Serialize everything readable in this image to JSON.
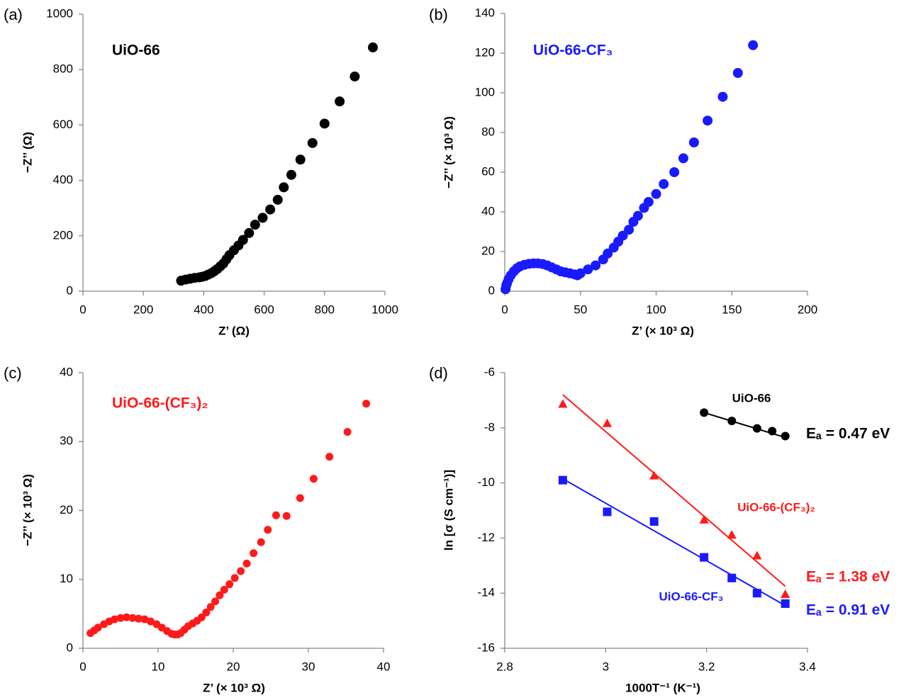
{
  "chart_data": [
    {
      "type": "scatter",
      "panel": "(a)",
      "title": "UiO-66",
      "title_color": "#000000",
      "xlabel": "Z’ (Ω)",
      "ylabel": "−Z’’ (Ω)",
      "xlim": [
        0,
        1000
      ],
      "xticks": [
        0,
        200,
        400,
        600,
        800,
        1000
      ],
      "ylim": [
        0,
        1000
      ],
      "yticks": [
        0,
        200,
        400,
        600,
        800,
        1000
      ],
      "series": [
        {
          "name": "UiO-66",
          "color": "#000000",
          "marker": "circle",
          "x": [
            325,
            340,
            355,
            370,
            385,
            395,
            405,
            415,
            425,
            435,
            445,
            455,
            465,
            475,
            485,
            500,
            515,
            530,
            550,
            570,
            595,
            620,
            645,
            665,
            690,
            720,
            760,
            800,
            850,
            900,
            960
          ],
          "values": [
            38,
            42,
            45,
            48,
            50,
            52,
            55,
            60,
            65,
            72,
            80,
            90,
            100,
            115,
            130,
            148,
            165,
            185,
            210,
            240,
            265,
            295,
            330,
            375,
            420,
            475,
            535,
            605,
            685,
            775,
            880
          ]
        }
      ]
    },
    {
      "type": "scatter",
      "panel": "(b)",
      "title": "UiO-66-CF₃",
      "title_color": "#1a1aff",
      "xlabel": "Z’ (× 10³ Ω)",
      "ylabel": "−Z’’ (× 10³ Ω)",
      "xlim": [
        0,
        200
      ],
      "xticks": [
        0,
        50,
        100,
        150,
        200
      ],
      "ylim": [
        0,
        140
      ],
      "yticks": [
        0,
        20,
        40,
        60,
        80,
        100,
        120,
        140
      ],
      "series": [
        {
          "name": "UiO-66-CF₃",
          "color": "#1a1aff",
          "marker": "circle",
          "x": [
            0.5,
            1,
            1.5,
            2.5,
            4,
            6,
            8,
            10,
            13,
            16,
            19,
            22,
            25,
            28,
            31,
            34,
            37,
            40,
            43,
            46,
            48,
            50,
            55,
            60,
            65,
            68,
            72,
            75,
            78,
            82,
            85,
            88,
            92,
            95,
            100,
            105,
            112,
            118,
            125,
            134,
            144,
            154,
            164
          ],
          "values": [
            1,
            3,
            4,
            6,
            8,
            10,
            11.5,
            12.5,
            13.3,
            13.8,
            14,
            14,
            13.7,
            13,
            12,
            11,
            10,
            9.5,
            9,
            8.5,
            8,
            9,
            11,
            13,
            16,
            19,
            22,
            25,
            28,
            31,
            35,
            38,
            42,
            45,
            49,
            54,
            60,
            67,
            75,
            86,
            98,
            110,
            124
          ]
        }
      ]
    },
    {
      "type": "scatter",
      "panel": "(c)",
      "title": "UiO-66-(CF₃)₂",
      "title_color": "#ff1a1a",
      "xlabel": "Z’ (× 10³ Ω)",
      "ylabel": "−Z’’ (× 10³ Ω)",
      "xlim": [
        0,
        40
      ],
      "xticks": [
        0,
        10,
        20,
        30,
        40
      ],
      "ylim": [
        0,
        40
      ],
      "yticks": [
        0,
        10,
        20,
        30,
        40
      ],
      "series": [
        {
          "name": "UiO-66-(CF₃)₂",
          "color": "#ff1a1a",
          "marker": "circle",
          "x": [
            1,
            1.5,
            2,
            2.8,
            3.5,
            4.2,
            5,
            5.8,
            6.6,
            7.4,
            8.2,
            9,
            9.8,
            10.5,
            11.2,
            11.8,
            12.2,
            12.6,
            13,
            13.5,
            14,
            14.6,
            15.2,
            15.8,
            16.4,
            17,
            17.6,
            18.2,
            18.8,
            19.5,
            20.2,
            21,
            21.8,
            22.7,
            23.7,
            24.6,
            25.7,
            27.1,
            28.9,
            30.7,
            32.8,
            35.2,
            37.7
          ],
          "values": [
            2.2,
            2.6,
            3,
            3.5,
            3.9,
            4.2,
            4.4,
            4.5,
            4.4,
            4.3,
            4.2,
            3.9,
            3.5,
            3,
            2.5,
            2.1,
            2,
            2,
            2.2,
            2.7,
            3.2,
            3.6,
            4,
            4.5,
            5.2,
            6,
            6.8,
            7.7,
            8.5,
            9.3,
            10.2,
            11.2,
            12.3,
            13.8,
            15.4,
            17.2,
            19.3,
            19.2,
            21.8,
            24.6,
            27.8,
            31.4,
            35.5
          ]
        }
      ]
    },
    {
      "type": "scatter",
      "panel": "(d)",
      "xlabel": "1000T⁻¹ (K⁻¹)",
      "ylabel": "ln [σ (S cm⁻¹)]",
      "xlim": [
        2.8,
        3.4
      ],
      "xticks": [
        2.8,
        3,
        3.2,
        3.4
      ],
      "ylim": [
        -16,
        -6
      ],
      "yticks": [
        -6,
        -8,
        -10,
        -12,
        -14,
        -16
      ],
      "series": [
        {
          "name": "UiO-66",
          "label": "Eₐ = 0.47 eV",
          "color": "#000000",
          "marker": "circle",
          "x": [
            3.195,
            3.25,
            3.3,
            3.33,
            3.356
          ],
          "values": [
            -7.45,
            -7.75,
            -8.02,
            -8.12,
            -8.3
          ],
          "fit": {
            "x": [
              3.195,
              3.356
            ],
            "values": [
              -7.45,
              -8.35
            ]
          }
        },
        {
          "name": "UiO-66-(CF₃)₂",
          "label": "Eₐ = 1.38 eV",
          "color": "#ff1a1a",
          "marker": "triangle",
          "x": [
            2.915,
            3.003,
            3.096,
            3.195,
            3.25,
            3.3,
            3.356
          ],
          "values": [
            -7.15,
            -7.85,
            -9.75,
            -11.35,
            -11.9,
            -12.65,
            -14.05
          ],
          "fit": {
            "x": [
              2.915,
              3.356
            ],
            "values": [
              -6.8,
              -13.75
            ]
          }
        },
        {
          "name": "UiO-66-CF₃",
          "label": "Eₐ = 0.91 eV",
          "color": "#1a1aff",
          "marker": "square",
          "x": [
            2.915,
            3.003,
            3.096,
            3.195,
            3.25,
            3.3,
            3.356
          ],
          "values": [
            -9.9,
            -11.05,
            -11.4,
            -12.7,
            -13.45,
            -14.0,
            -14.38
          ],
          "fit": {
            "x": [
              2.915,
              3.356
            ],
            "values": [
              -9.85,
              -14.45
            ]
          }
        }
      ]
    }
  ]
}
